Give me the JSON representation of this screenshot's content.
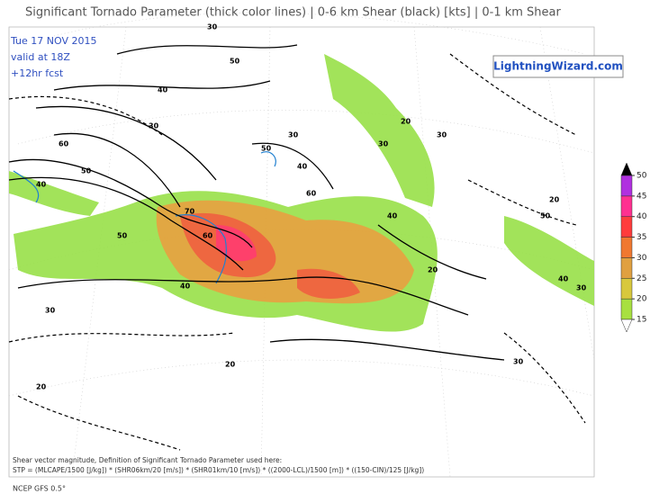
{
  "header": {
    "title": "Significant Tornado Parameter (thick color lines) | 0-6 km Shear (black) [kts] | 0-1 km Shear",
    "date": "Tue 17 NOV 2015",
    "valid": "valid at 18Z",
    "forecast": "+12hr fcst",
    "logo": "LightningWizard.com"
  },
  "colorbar": {
    "ticks": [
      15,
      20,
      25,
      30,
      35,
      40,
      45,
      50
    ],
    "colors": [
      "#a8e040",
      "#d8c83c",
      "#e0a040",
      "#f07830",
      "#ff3c3c",
      "#ff3090",
      "#b030e0"
    ]
  },
  "contour_labels": [
    "30",
    "50",
    "40",
    "30",
    "60",
    "50",
    "40",
    "70",
    "60",
    "50",
    "40",
    "30",
    "20",
    "30",
    "40",
    "50",
    "60",
    "30",
    "20",
    "30",
    "40",
    "20",
    "30",
    "20",
    "50",
    "40",
    "30",
    "20"
  ],
  "footer": {
    "note": "Shear vector magnitude, Definition of Significant Tornado Parameter used here:",
    "formula": "STP = (MLCAPE/1500 [J/kg]) * (SHR06km/20 [m/s]) * (SHR01km/10 [m/s]) * ((2000-LCL)/1500 [m]) * ((150-CIN)/125 [J/kg])",
    "model": "NCEP GFS 0.5°"
  }
}
